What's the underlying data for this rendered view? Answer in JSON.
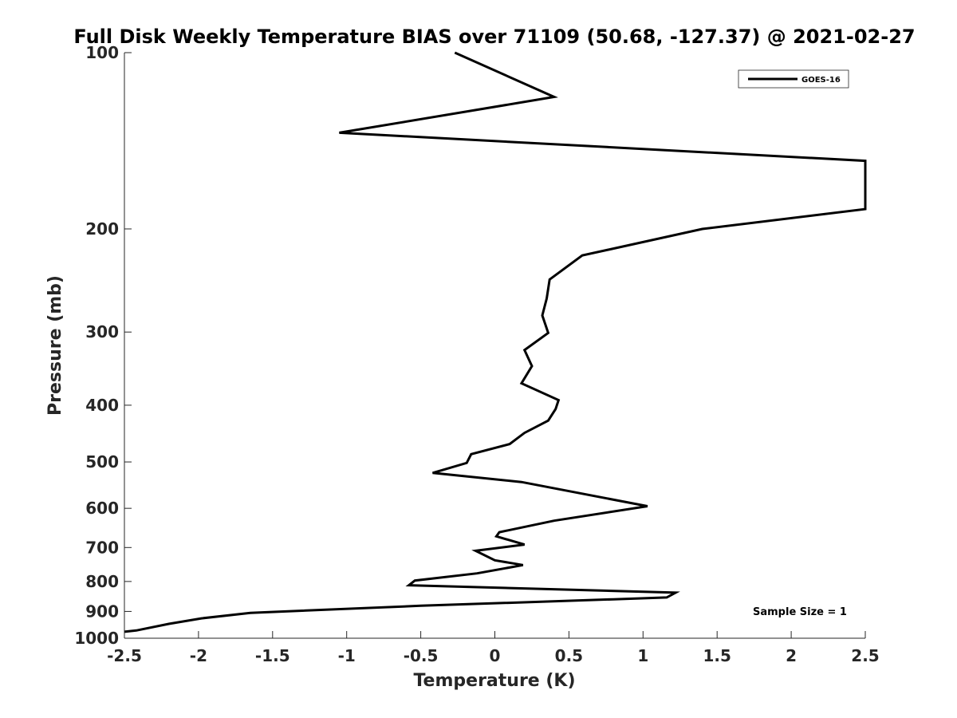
{
  "chart_data": {
    "type": "line",
    "title": "Full Disk Weekly Temperature BIAS over 71109 (50.68, -127.37) @ 2021-02-27",
    "xlabel": "Temperature (K)",
    "ylabel": "Pressure (mb)",
    "xlim": [
      -2.5,
      2.5
    ],
    "ylim": [
      100,
      1000
    ],
    "yscale": "log",
    "yreversed": true,
    "grid": false,
    "legend_position": "top-right",
    "x_ticks": [
      {
        "value": -2.5,
        "label": "-2.5"
      },
      {
        "value": -2,
        "label": "-2"
      },
      {
        "value": -1.5,
        "label": "-1.5"
      },
      {
        "value": -1,
        "label": "-1"
      },
      {
        "value": -0.5,
        "label": "-0.5"
      },
      {
        "value": 0,
        "label": "0"
      },
      {
        "value": 0.5,
        "label": "0.5"
      },
      {
        "value": 1,
        "label": "1"
      },
      {
        "value": 1.5,
        "label": "1.5"
      },
      {
        "value": 2,
        "label": "2"
      },
      {
        "value": 2.5,
        "label": "2.5"
      }
    ],
    "y_ticks": [
      {
        "value": 100,
        "label": "100"
      },
      {
        "value": 200,
        "label": "200"
      },
      {
        "value": 300,
        "label": "300"
      },
      {
        "value": 400,
        "label": "400"
      },
      {
        "value": 500,
        "label": "500"
      },
      {
        "value": 600,
        "label": "600"
      },
      {
        "value": 700,
        "label": "700"
      },
      {
        "value": 800,
        "label": "800"
      },
      {
        "value": 900,
        "label": "900"
      },
      {
        "value": 1000,
        "label": "1000"
      }
    ],
    "series": [
      {
        "name": "GOES-16",
        "color": "#000000",
        "points": [
          {
            "x": -0.27,
            "y": 100
          },
          {
            "x": 0.4,
            "y": 119
          },
          {
            "x": -1.05,
            "y": 137
          },
          {
            "x": 2.5,
            "y": 153
          },
          {
            "x": 2.5,
            "y": 185
          },
          {
            "x": 1.4,
            "y": 200
          },
          {
            "x": 0.59,
            "y": 222
          },
          {
            "x": 0.37,
            "y": 244
          },
          {
            "x": 0.35,
            "y": 263
          },
          {
            "x": 0.32,
            "y": 281
          },
          {
            "x": 0.36,
            "y": 301
          },
          {
            "x": 0.2,
            "y": 322
          },
          {
            "x": 0.25,
            "y": 343
          },
          {
            "x": 0.18,
            "y": 367
          },
          {
            "x": 0.43,
            "y": 392
          },
          {
            "x": 0.41,
            "y": 406
          },
          {
            "x": 0.36,
            "y": 425
          },
          {
            "x": 0.2,
            "y": 446
          },
          {
            "x": 0.1,
            "y": 466
          },
          {
            "x": -0.16,
            "y": 485
          },
          {
            "x": -0.19,
            "y": 502
          },
          {
            "x": -0.42,
            "y": 522
          },
          {
            "x": 0.18,
            "y": 541
          },
          {
            "x": 1.03,
            "y": 595
          },
          {
            "x": 0.4,
            "y": 630
          },
          {
            "x": 0.03,
            "y": 659
          },
          {
            "x": 0.01,
            "y": 670
          },
          {
            "x": 0.2,
            "y": 692
          },
          {
            "x": -0.13,
            "y": 709
          },
          {
            "x": 0.0,
            "y": 736
          },
          {
            "x": 0.19,
            "y": 750
          },
          {
            "x": -0.12,
            "y": 775
          },
          {
            "x": -0.54,
            "y": 797
          },
          {
            "x": -0.58,
            "y": 812
          },
          {
            "x": 1.22,
            "y": 836
          },
          {
            "x": 1.16,
            "y": 852
          },
          {
            "x": 0.8,
            "y": 858
          },
          {
            "x": -0.5,
            "y": 880
          },
          {
            "x": -1.65,
            "y": 905
          },
          {
            "x": -1.98,
            "y": 925
          },
          {
            "x": -2.2,
            "y": 945
          },
          {
            "x": -2.42,
            "y": 970
          },
          {
            "x": -2.5,
            "y": 975
          }
        ]
      }
    ],
    "annotations": [
      {
        "text": "Sample Size = 1",
        "position": "bottom-right"
      }
    ]
  }
}
